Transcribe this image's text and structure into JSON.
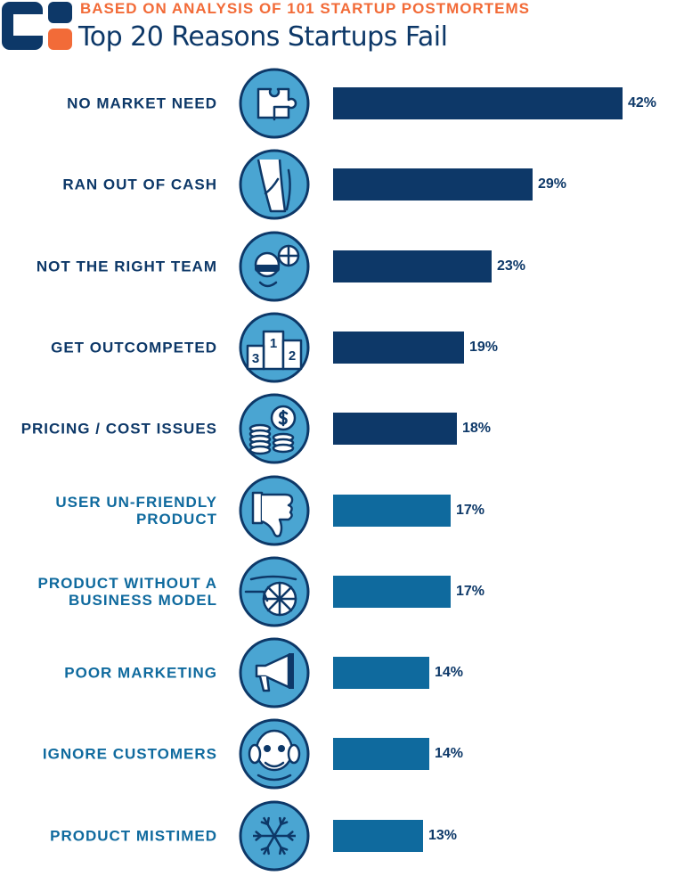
{
  "header": {
    "subtitle": "BASED ON ANALYSIS OF 101 STARTUP POSTMORTEMS",
    "title": "Top 20 Reasons Startups Fail"
  },
  "colors": {
    "dark_navy": "#0d3868",
    "medium_blue": "#0f6a9e",
    "light_blue": "#4aa5d2",
    "orange": "#f26b38"
  },
  "chart_data": {
    "type": "bar",
    "orientation": "horizontal",
    "title": "Top 20 Reasons Startups Fail",
    "subtitle": "BASED ON ANALYSIS OF 101 STARTUP POSTMORTEMS",
    "unit": "%",
    "categories": [
      "NO MARKET NEED",
      "RAN OUT OF CASH",
      "NOT THE RIGHT TEAM",
      "GET OUTCOMPETED",
      "PRICING / COST ISSUES",
      "USER UN-FRIENDLY\nPRODUCT",
      "PRODUCT WITHOUT A\nBUSINESS MODEL",
      "POOR MARKETING",
      "IGNORE CUSTOMERS",
      "PRODUCT MISTIMED"
    ],
    "values": [
      42,
      29,
      23,
      19,
      18,
      17,
      17,
      14,
      14,
      13
    ],
    "value_labels": [
      "42%",
      "29%",
      "23%",
      "19%",
      "18%",
      "17%",
      "17%",
      "14%",
      "14%",
      "13%"
    ],
    "icons": [
      "puzzle-icon",
      "empty-pocket-icon",
      "team-icon",
      "podium-icon",
      "coins-dollar-icon",
      "thumbs-down-icon",
      "rickshaw-icon",
      "megaphone-icon",
      "monkey-icon",
      "snowflake-icon"
    ],
    "bar_colors": [
      "#0d3868",
      "#0d3868",
      "#0d3868",
      "#0d3868",
      "#0d3868",
      "#0f6a9e",
      "#0f6a9e",
      "#0f6a9e",
      "#0f6a9e",
      "#0f6a9e"
    ],
    "label_colors": [
      "#0d3868",
      "#0d3868",
      "#0d3868",
      "#0d3868",
      "#0d3868",
      "#0f6a9e",
      "#0f6a9e",
      "#0f6a9e",
      "#0f6a9e",
      "#0f6a9e"
    ],
    "podium_numbers": [
      "1",
      "2",
      "3"
    ],
    "xlim": [
      0,
      42
    ],
    "grid": false,
    "legend": "none"
  }
}
